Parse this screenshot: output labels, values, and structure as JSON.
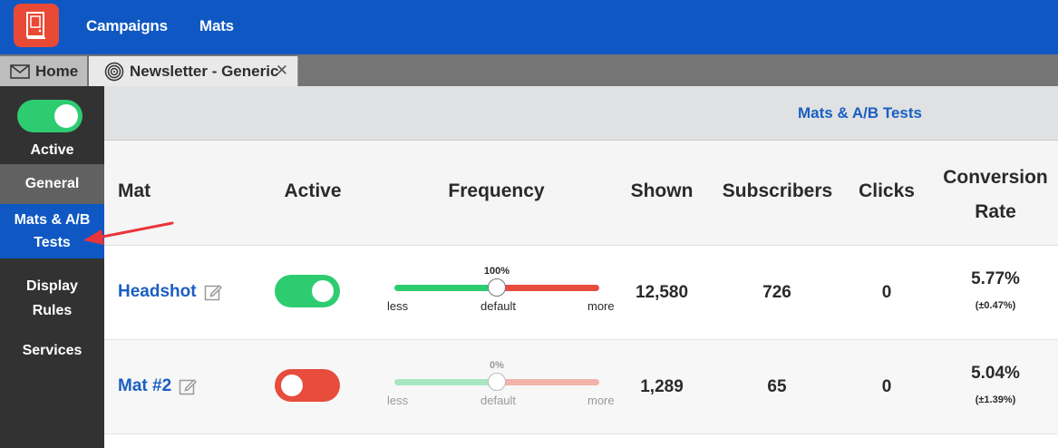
{
  "nav": {
    "items": [
      "Campaigns",
      "Mats"
    ]
  },
  "tabs": {
    "home": "Home",
    "newsletter": "Newsletter - Generic",
    "close": "✕"
  },
  "sidebar": {
    "status_label": "Active",
    "status_on": true,
    "items": {
      "general": "General",
      "mats_line1": "Mats & A/B",
      "mats_line2": "Tests",
      "display_line1": "Display",
      "display_line2": "Rules",
      "services": "Services"
    }
  },
  "main": {
    "title": "Mats & A/B Tests"
  },
  "table": {
    "headers": {
      "mat": "Mat",
      "active": "Active",
      "frequency": "Frequency",
      "shown": "Shown",
      "subscribers": "Subscribers",
      "clicks": "Clicks",
      "conversion_line1": "Conversion",
      "conversion_line2": "Rate"
    },
    "slider_labels": {
      "less": "less",
      "default": "default",
      "more": "more"
    },
    "rows": [
      {
        "name": "Headshot",
        "active": true,
        "frequency_pct": "100%",
        "frequency_value": 0.5,
        "shown": "12,580",
        "subscribers": "726",
        "clicks": "0",
        "rate": "5.77%",
        "rate_margin": "(±0.47%)"
      },
      {
        "name": "Mat #2",
        "active": false,
        "frequency_pct": "0%",
        "frequency_value": 0.5,
        "shown": "1,289",
        "subscribers": "65",
        "clicks": "0",
        "rate": "5.04%",
        "rate_margin": "(±1.39%)"
      }
    ]
  },
  "colors": {
    "brand_blue": "#0f58c4",
    "logo_red": "#e84a35",
    "green": "#2ecc71",
    "red": "#e74c3c",
    "annotation_arrow": "#e8343b"
  }
}
